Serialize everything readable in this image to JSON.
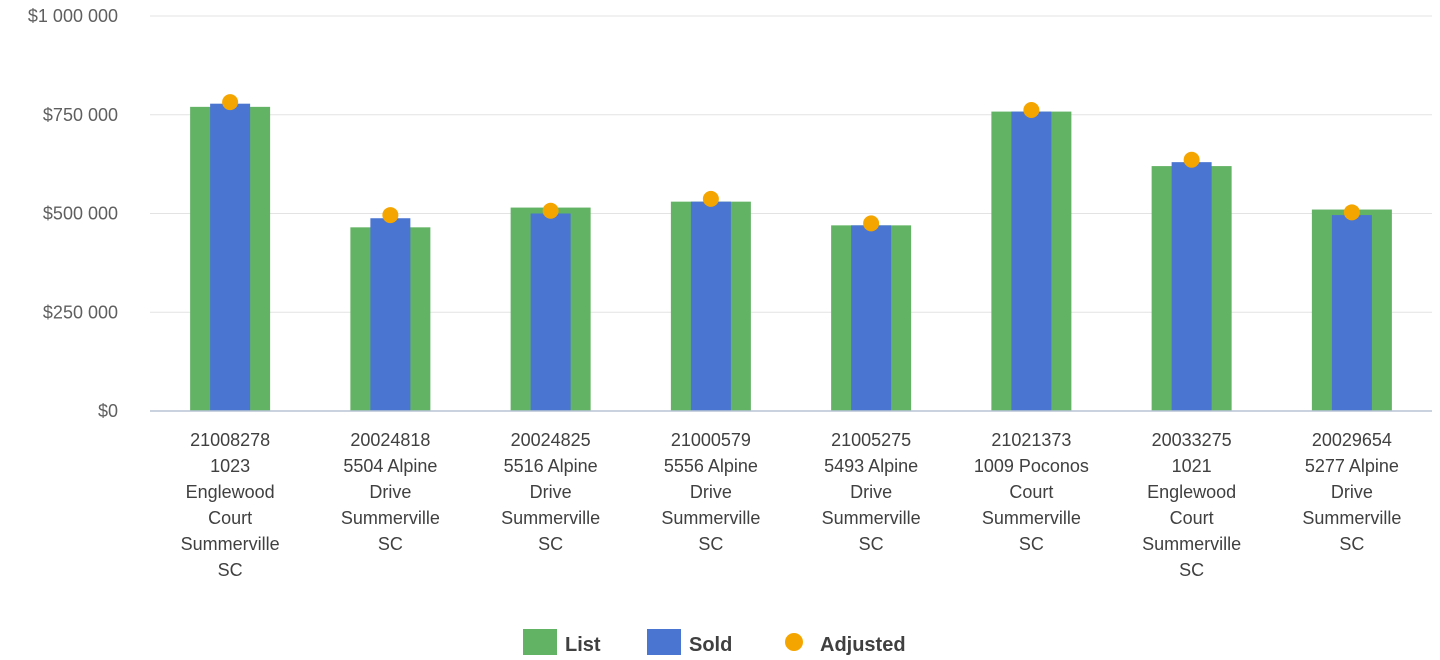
{
  "chart_data": {
    "type": "bar",
    "title": "",
    "xlabel": "",
    "ylabel": "",
    "ylim": [
      0,
      1000000
    ],
    "y_ticks": [
      0,
      250000,
      500000,
      750000,
      1000000
    ],
    "y_tick_labels": [
      "$0",
      "$250 000",
      "$500 000",
      "$750 000",
      "$1 000 000"
    ],
    "grid": true,
    "legend_position": "bottom",
    "categories": [
      [
        "21008278",
        "1023",
        "Englewood",
        "Court",
        "Summerville",
        "SC"
      ],
      [
        "20024818",
        "5504 Alpine",
        "Drive",
        "Summerville",
        "SC"
      ],
      [
        "20024825",
        "5516 Alpine",
        "Drive",
        "Summerville",
        "SC"
      ],
      [
        "21000579",
        "5556 Alpine",
        "Drive",
        "Summerville",
        "SC"
      ],
      [
        "21005275",
        "5493 Alpine",
        "Drive",
        "Summerville",
        "SC"
      ],
      [
        "21021373",
        "1009 Poconos",
        "Court",
        "Summerville",
        "SC"
      ],
      [
        "20033275",
        "1021",
        "Englewood",
        "Court",
        "Summerville",
        "SC"
      ],
      [
        "20029654",
        "5277 Alpine",
        "Drive",
        "Summerville",
        "SC"
      ]
    ],
    "series": [
      {
        "name": "List",
        "type": "bar",
        "color": "#63b365",
        "values": [
          770000,
          465000,
          515000,
          530000,
          470000,
          758000,
          620000,
          510000
        ]
      },
      {
        "name": "Sold",
        "type": "bar",
        "color": "#4a75d1",
        "values": [
          778000,
          488000,
          500000,
          530000,
          470000,
          758000,
          630000,
          496000
        ]
      },
      {
        "name": "Adjusted",
        "type": "scatter",
        "color": "#f5a500",
        "values": [
          782000,
          496000,
          507000,
          537000,
          475000,
          762000,
          636000,
          503000
        ]
      }
    ]
  }
}
